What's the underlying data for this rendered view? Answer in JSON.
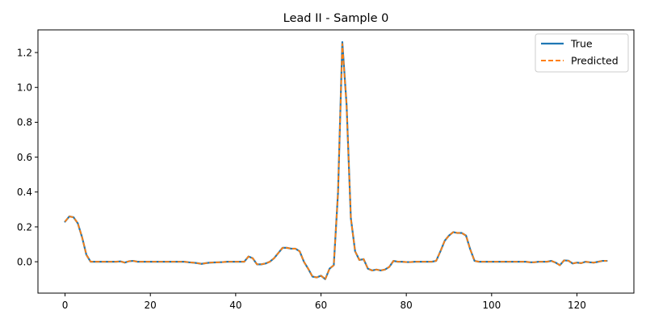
{
  "chart_data": {
    "type": "line",
    "title": "Lead II - Sample 0",
    "xlabel": "",
    "ylabel": "",
    "xlim": [
      -6.35,
      133.35
    ],
    "ylim": [
      -0.18,
      1.33
    ],
    "xticks": [
      0,
      20,
      40,
      60,
      80,
      100,
      120
    ],
    "yticks": [
      0.0,
      0.2,
      0.4,
      0.6,
      0.8,
      1.0,
      1.2
    ],
    "ytick_labels": [
      "0.0",
      "0.2",
      "0.4",
      "0.6",
      "0.8",
      "1.0",
      "1.2"
    ],
    "grid": false,
    "legend_position": "top-right",
    "x": [
      0,
      1,
      2,
      3,
      4,
      5,
      6,
      7,
      8,
      9,
      10,
      11,
      12,
      13,
      14,
      15,
      16,
      17,
      18,
      19,
      20,
      21,
      22,
      23,
      24,
      25,
      26,
      27,
      28,
      29,
      30,
      31,
      32,
      33,
      34,
      35,
      36,
      37,
      38,
      39,
      40,
      41,
      42,
      43,
      44,
      45,
      46,
      47,
      48,
      49,
      50,
      51,
      52,
      53,
      54,
      55,
      56,
      57,
      58,
      59,
      60,
      61,
      62,
      63,
      64,
      65,
      66,
      67,
      68,
      69,
      70,
      71,
      72,
      73,
      74,
      75,
      76,
      77,
      78,
      79,
      80,
      81,
      82,
      83,
      84,
      85,
      86,
      87,
      88,
      89,
      90,
      91,
      92,
      93,
      94,
      95,
      96,
      97,
      98,
      99,
      100,
      101,
      102,
      103,
      104,
      105,
      106,
      107,
      108,
      109,
      110,
      111,
      112,
      113,
      114,
      115,
      116,
      117,
      118,
      119,
      120,
      121,
      122,
      123,
      124,
      125,
      126,
      127
    ],
    "series": [
      {
        "name": "True",
        "color": "#1f77b4",
        "style": "solid",
        "values": [
          0.23,
          0.26,
          0.255,
          0.22,
          0.14,
          0.04,
          0.0,
          0.0,
          0.0,
          0.0,
          0.0,
          0.0,
          0.0,
          0.002,
          -0.005,
          0.003,
          0.005,
          0.0,
          0.0,
          0.0,
          0.0,
          0.0,
          0.0,
          0.0,
          0.0,
          0.0,
          0.0,
          0.0,
          0.0,
          -0.003,
          -0.005,
          -0.008,
          -0.012,
          -0.008,
          -0.005,
          -0.004,
          -0.003,
          -0.002,
          0.0,
          0.0,
          0.0,
          0.0,
          0.0,
          0.03,
          0.02,
          -0.015,
          -0.015,
          -0.01,
          0.0,
          0.02,
          0.05,
          0.08,
          0.08,
          0.075,
          0.075,
          0.06,
          0.0,
          -0.04,
          -0.085,
          -0.09,
          -0.08,
          -0.1,
          -0.04,
          -0.02,
          0.4,
          1.26,
          0.9,
          0.25,
          0.06,
          0.01,
          0.015,
          -0.04,
          -0.05,
          -0.045,
          -0.05,
          -0.045,
          -0.03,
          0.005,
          0.0,
          0.0,
          -0.002,
          -0.002,
          0.0,
          0.0,
          0.0,
          0.0,
          0.0,
          0.005,
          0.06,
          0.12,
          0.15,
          0.17,
          0.165,
          0.165,
          0.15,
          0.07,
          0.005,
          0.0,
          0.0,
          0.0,
          0.0,
          0.0,
          0.0,
          0.0,
          0.0,
          0.0,
          0.0,
          0.0,
          0.0,
          -0.003,
          -0.003,
          0.0,
          0.0,
          0.0,
          0.005,
          -0.005,
          -0.02,
          0.008,
          0.006,
          -0.01,
          -0.005,
          -0.008,
          0.0,
          -0.003,
          -0.005,
          0.0,
          0.005,
          0.005
        ]
      },
      {
        "name": "Predicted",
        "color": "#ff7f0e",
        "style": "dashed",
        "values": [
          0.23,
          0.26,
          0.255,
          0.22,
          0.14,
          0.04,
          0.0,
          0.0,
          0.0,
          0.0,
          0.0,
          0.0,
          0.0,
          0.002,
          -0.005,
          0.003,
          0.005,
          0.0,
          0.0,
          0.0,
          0.0,
          0.0,
          0.0,
          0.0,
          0.0,
          0.0,
          0.0,
          0.0,
          0.0,
          -0.003,
          -0.005,
          -0.008,
          -0.012,
          -0.008,
          -0.005,
          -0.004,
          -0.003,
          -0.002,
          0.0,
          0.0,
          0.0,
          0.0,
          0.0,
          0.03,
          0.02,
          -0.015,
          -0.015,
          -0.01,
          0.0,
          0.02,
          0.05,
          0.08,
          0.08,
          0.075,
          0.075,
          0.06,
          0.0,
          -0.04,
          -0.085,
          -0.09,
          -0.08,
          -0.1,
          -0.04,
          -0.02,
          0.4,
          1.25,
          0.9,
          0.25,
          0.06,
          0.01,
          0.015,
          -0.04,
          -0.05,
          -0.045,
          -0.05,
          -0.045,
          -0.03,
          0.005,
          0.0,
          0.0,
          -0.002,
          -0.002,
          0.0,
          0.0,
          0.0,
          0.0,
          0.0,
          0.005,
          0.06,
          0.12,
          0.15,
          0.17,
          0.165,
          0.165,
          0.15,
          0.07,
          0.005,
          0.0,
          0.0,
          0.0,
          0.0,
          0.0,
          0.0,
          0.0,
          0.0,
          0.0,
          0.0,
          0.0,
          0.0,
          -0.003,
          -0.003,
          0.0,
          0.0,
          0.0,
          0.005,
          -0.005,
          -0.02,
          0.008,
          0.006,
          -0.01,
          -0.005,
          -0.008,
          0.0,
          -0.003,
          -0.005,
          0.0,
          0.005,
          0.005
        ]
      }
    ]
  }
}
